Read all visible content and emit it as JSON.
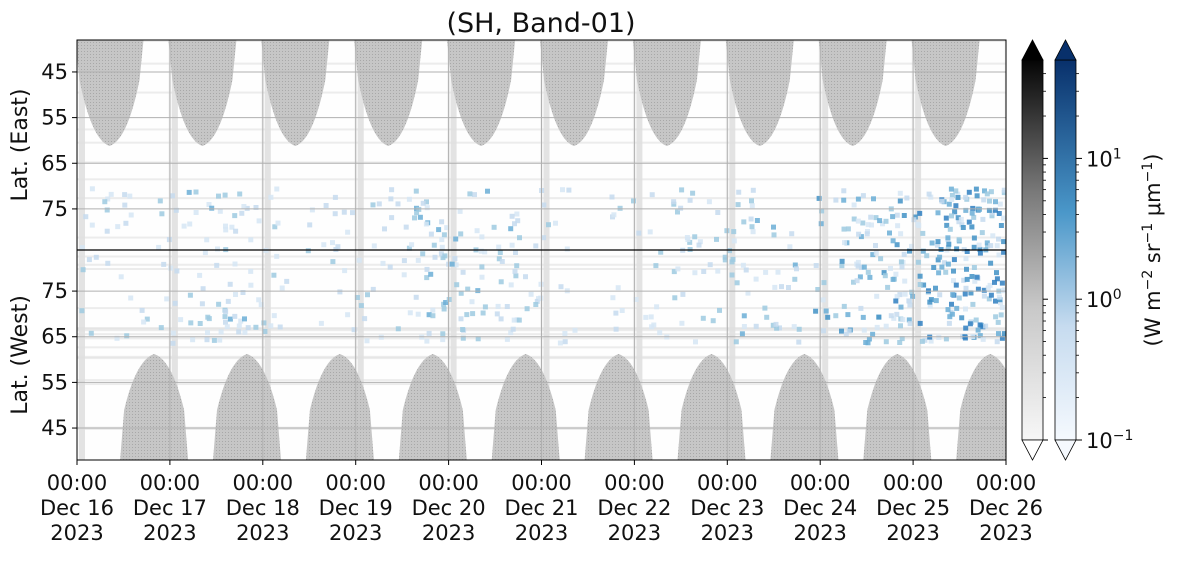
{
  "chart_data": {
    "type": "heatmap",
    "title": "(SH, Band-01)",
    "x_ticks": [
      {
        "time": "00:00",
        "day": "Dec 16",
        "year": "2023"
      },
      {
        "time": "00:00",
        "day": "Dec 17",
        "year": "2023"
      },
      {
        "time": "00:00",
        "day": "Dec 18",
        "year": "2023"
      },
      {
        "time": "00:00",
        "day": "Dec 19",
        "year": "2023"
      },
      {
        "time": "00:00",
        "day": "Dec 20",
        "year": "2023"
      },
      {
        "time": "00:00",
        "day": "Dec 21",
        "year": "2023"
      },
      {
        "time": "00:00",
        "day": "Dec 22",
        "year": "2023"
      },
      {
        "time": "00:00",
        "day": "Dec 23",
        "year": "2023"
      },
      {
        "time": "00:00",
        "day": "Dec 24",
        "year": "2023"
      },
      {
        "time": "00:00",
        "day": "Dec 25",
        "year": "2023"
      },
      {
        "time": "00:00",
        "day": "Dec 26",
        "year": "2023"
      }
    ],
    "panels": [
      {
        "ylabel": "Lat. (East)",
        "yticks": [
          "45",
          "55",
          "65",
          "75"
        ],
        "ylim": [
          38,
          84
        ],
        "orientation": "increasing-down"
      },
      {
        "ylabel": "Lat. (West)",
        "yticks": [
          "75",
          "65",
          "55",
          "45"
        ],
        "ylim": [
          84,
          38
        ],
        "orientation": "increasing-up"
      }
    ],
    "colorbars": [
      {
        "cmap": "greys",
        "name": "grey",
        "extend": "both"
      },
      {
        "cmap": "blues",
        "name": "blue",
        "extend": "both",
        "scale": "log",
        "range": [
          0.1,
          50
        ],
        "ticks": [
          {
            "base": "10",
            "exp": "1",
            "value": 10
          },
          {
            "base": "10",
            "exp": "0",
            "value": 1
          },
          {
            "base": "10",
            "exp": "−1",
            "value": 0.1
          }
        ]
      }
    ],
    "colorbar_label": {
      "parts": [
        "(W m",
        "−2",
        " sr",
        "−1",
        " μm",
        "−1",
        ")"
      ]
    },
    "grid": true,
    "colors": {
      "night_mask": "#bfbfbf",
      "cloud": "#2f7fc1",
      "background": "#f3f3f3"
    }
  }
}
